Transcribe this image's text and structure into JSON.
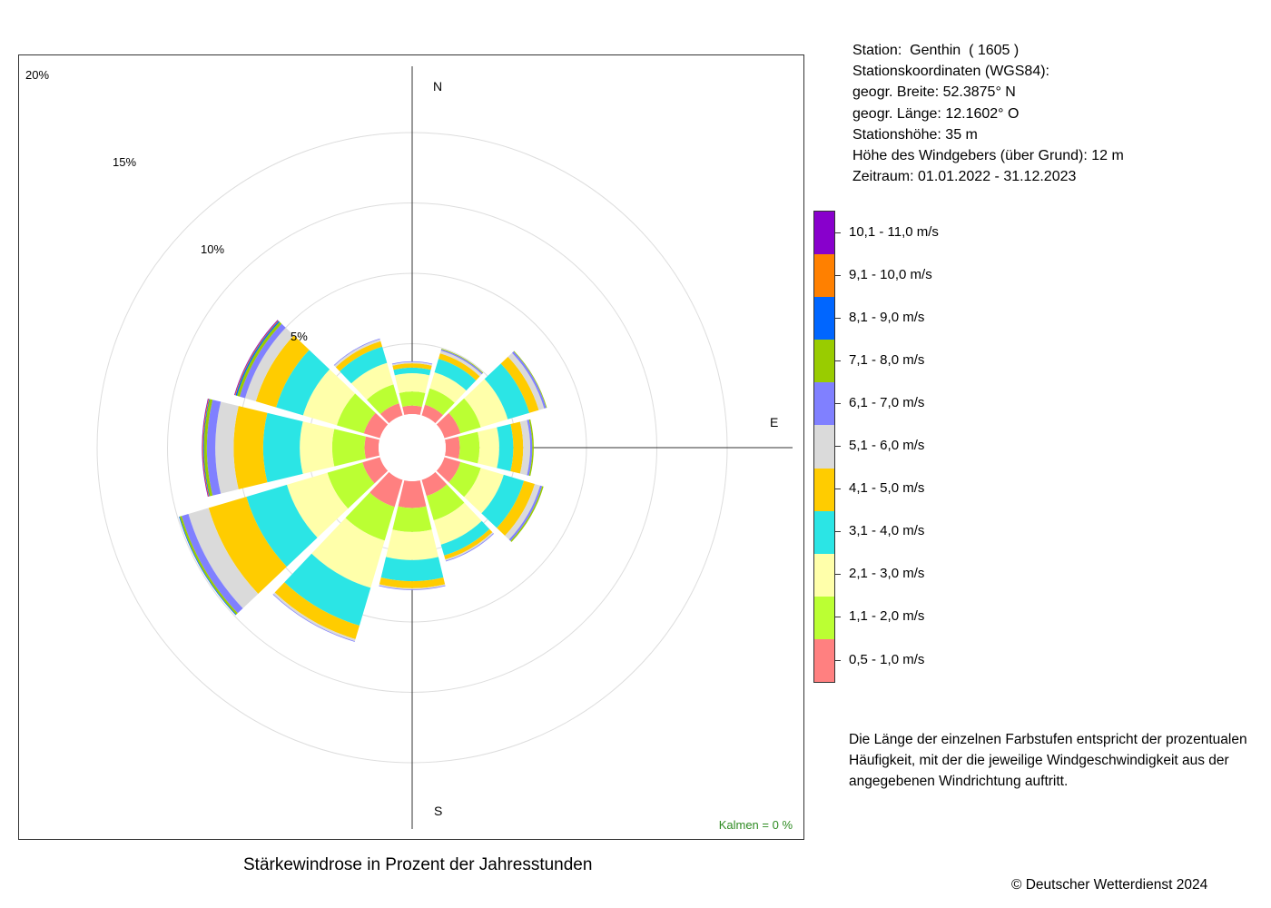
{
  "station": {
    "lines": [
      "Station:  Genthin  ( 1605 )",
      "Stationskoordinaten (WGS84):",
      "geogr. Breite: 52.3875° N",
      "geogr. Länge: 12.1602° O",
      "Stationshöhe: 35 m",
      "Höhe des Windgebers (über Grund): 12 m",
      "Zeitraum: 01.01.2022 - 31.12.2023"
    ]
  },
  "chart_data": {
    "type": "windrose",
    "title": "Stärkewindrose in Prozent der Jahresstunden",
    "unit": "%",
    "directions_deg": [
      0,
      30,
      60,
      90,
      120,
      150,
      180,
      210,
      240,
      270,
      300,
      330
    ],
    "direction_labels": {
      "N": "N",
      "E": "E",
      "S": "S"
    },
    "rings": [
      5,
      10,
      15,
      20
    ],
    "ring_labels": [
      "5%",
      "10%",
      "15%",
      "20%"
    ],
    "calm_text": "Kalmen  =  0 %",
    "bins": [
      {
        "label": "0,5 - 1,0 m/s",
        "color": "#FF8080"
      },
      {
        "label": "1,1 - 2,0 m/s",
        "color": "#BBFF33"
      },
      {
        "label": "2,1 - 3,0 m/s",
        "color": "#FFFFAA"
      },
      {
        "label": "3,1 - 4,0 m/s",
        "color": "#2BE5E5"
      },
      {
        "label": "4,1 - 5,0 m/s",
        "color": "#FFCC00"
      },
      {
        "label": "5,1 - 6,0 m/s",
        "color": "#DADADA"
      },
      {
        "label": "6,1 - 7,0 m/s",
        "color": "#8080FF"
      },
      {
        "label": "7,1 - 8,0 m/s",
        "color": "#99CC00"
      },
      {
        "label": "8,1 - 9,0 m/s",
        "color": "#0066FF"
      },
      {
        "label": "9,1 - 10,0 m/s",
        "color": "#FF8000"
      },
      {
        "label": "10,1 - 11,0 m/s",
        "color": "#8800CC"
      }
    ],
    "series": [
      {
        "dir": 0,
        "values": [
          0.6,
          1.0,
          1.3,
          0.4,
          0.3,
          0.1,
          0.05,
          0.0,
          0.0,
          0.0,
          0.0
        ]
      },
      {
        "dir": 30,
        "values": [
          0.8,
          1.2,
          1.2,
          1.0,
          0.4,
          0.2,
          0.1,
          0.05,
          0.0,
          0.0,
          0.0
        ]
      },
      {
        "dir": 60,
        "values": [
          1.2,
          1.5,
          2.0,
          1.6,
          0.7,
          0.4,
          0.15,
          0.05,
          0.0,
          0.0,
          0.0
        ]
      },
      {
        "dir": 90,
        "values": [
          1.0,
          1.4,
          1.4,
          1.0,
          0.7,
          0.5,
          0.15,
          0.1,
          0.0,
          0.0,
          0.0
        ]
      },
      {
        "dir": 120,
        "values": [
          1.2,
          1.5,
          1.7,
          1.5,
          0.8,
          0.4,
          0.15,
          0.1,
          0.0,
          0.0,
          0.0
        ]
      },
      {
        "dir": 150,
        "values": [
          1.2,
          1.8,
          1.8,
          0.8,
          0.3,
          0.1,
          0.05,
          0.0,
          0.0,
          0.0,
          0.0
        ]
      },
      {
        "dir": 180,
        "values": [
          1.9,
          1.7,
          2.0,
          1.5,
          0.5,
          0.08,
          0.05,
          0.0,
          0.0,
          0.0,
          0.0
        ]
      },
      {
        "dir": 210,
        "values": [
          2.0,
          2.5,
          3.5,
          2.8,
          1.0,
          0.15,
          0.05,
          0.0,
          0.0,
          0.0,
          0.0
        ]
      },
      {
        "dir": 240,
        "values": [
          1.3,
          2.6,
          3.0,
          3.0,
          2.8,
          1.5,
          0.5,
          0.15,
          0.05,
          0.0,
          0.0
        ]
      },
      {
        "dir": 270,
        "values": [
          1.0,
          2.3,
          2.3,
          2.6,
          2.1,
          1.3,
          0.6,
          0.2,
          0.05,
          0.05,
          0.05
        ]
      },
      {
        "dir": 300,
        "values": [
          1.2,
          2.0,
          2.5,
          2.0,
          1.5,
          0.8,
          0.4,
          0.2,
          0.1,
          0.05,
          0.05
        ]
      },
      {
        "dir": 330,
        "values": [
          0.9,
          1.4,
          1.6,
          1.2,
          0.4,
          0.15,
          0.05,
          0.0,
          0.0,
          0.0,
          0.0
        ]
      }
    ]
  },
  "legend": {
    "items": [
      {
        "label": "10,1 - 11,0 m/s",
        "color": "#8800CC"
      },
      {
        "label": "9,1 - 10,0 m/s",
        "color": "#FF8000"
      },
      {
        "label": "8,1 - 9,0 m/s",
        "color": "#0066FF"
      },
      {
        "label": "7,1 - 8,0 m/s",
        "color": "#99CC00"
      },
      {
        "label": "6,1 - 7,0 m/s",
        "color": "#8080FF"
      },
      {
        "label": "5,1 - 6,0 m/s",
        "color": "#DADADA"
      },
      {
        "label": "4,1 - 5,0 m/s",
        "color": "#FFCC00"
      },
      {
        "label": "3,1 - 4,0 m/s",
        "color": "#2BE5E5"
      },
      {
        "label": "2,1 - 3,0 m/s",
        "color": "#FFFFAA"
      },
      {
        "label": "1,1 - 2,0 m/s",
        "color": "#BBFF33"
      },
      {
        "label": "0,5 - 1,0 m/s",
        "color": "#FF8080"
      }
    ]
  },
  "note": "Die Länge der einzelnen Farbstufen entspricht der prozentualen Häufigkeit, mit der die jeweilige Windgeschwindigkeit aus der angegebenen Windrichtung auftritt.",
  "copyright": "© Deutscher Wetterdienst  2024"
}
